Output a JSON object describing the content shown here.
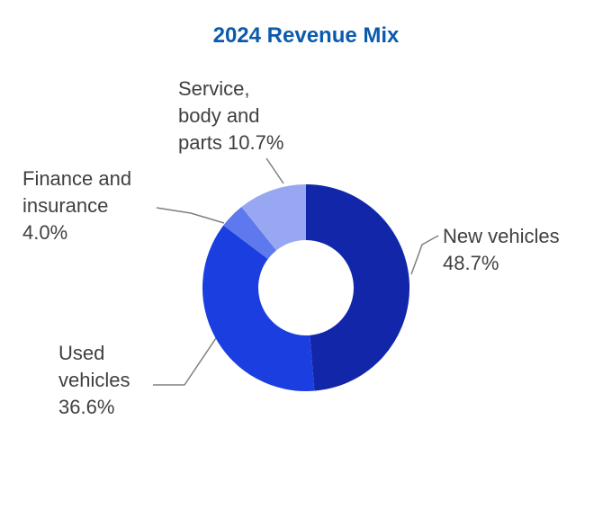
{
  "title": "2024 Revenue Mix",
  "chart_data": {
    "type": "pie",
    "subtype": "donut",
    "title": "2024 Revenue Mix",
    "start_angle_deg": 0,
    "direction": "clockwise",
    "unit": "%",
    "legend_position": "none",
    "segments": [
      {
        "id": "new-vehicles",
        "label": "New vehicles",
        "value": 48.7,
        "color": "#1226aa"
      },
      {
        "id": "used-vehicles",
        "label": "Used vehicles",
        "value": 36.6,
        "color": "#1b3ee0"
      },
      {
        "id": "finance-and-insurance",
        "label": "Finance and insurance",
        "value": 4.0,
        "color": "#5e78ed"
      },
      {
        "id": "service-body-and-parts",
        "label": "Service, body and parts",
        "value": 10.7,
        "color": "#98a7f2"
      }
    ]
  },
  "labels": {
    "service": [
      "Service,",
      "body and",
      "parts 10.7%"
    ],
    "finance": [
      "Finance and",
      "insurance",
      "4.0%"
    ],
    "new": [
      "New vehicles",
      "48.7%"
    ],
    "used": [
      "Used",
      "vehicles",
      "36.6%"
    ]
  },
  "colors": {
    "title": "#0b5bad",
    "label_text": "#404040",
    "leader_line": "#7f7f7f"
  }
}
